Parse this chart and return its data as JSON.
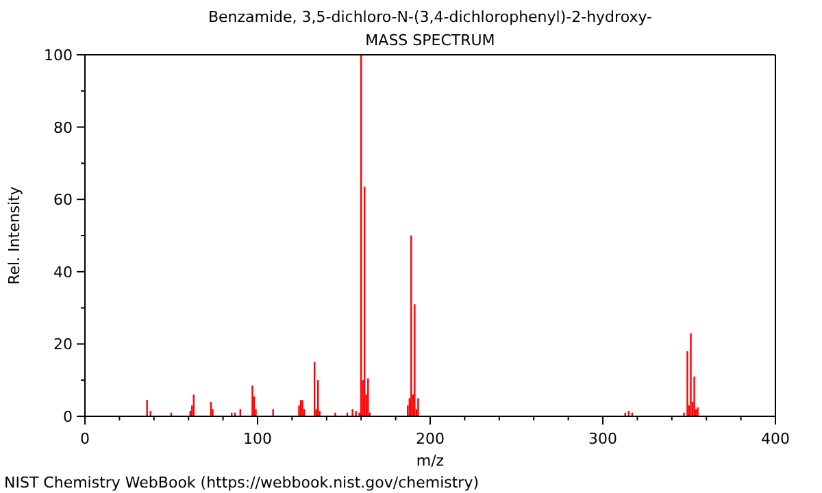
{
  "chart_data": {
    "type": "bar",
    "title": "Benzamide, 3,5-dichloro-N-(3,4-dichlorophenyl)-2-hydroxy-",
    "subtitle": "MASS SPECTRUM",
    "xlabel": "m/z",
    "ylabel": "Rel. Intensity",
    "x": [
      36,
      38,
      50,
      61,
      62,
      63,
      73,
      74,
      85,
      87,
      90,
      97,
      98,
      99,
      109,
      124,
      125,
      126,
      127,
      133,
      134,
      135,
      136,
      145,
      152,
      155,
      157,
      159,
      160,
      161,
      162,
      163,
      164,
      165,
      187,
      188,
      189,
      190,
      191,
      192,
      193,
      313,
      315,
      317,
      347,
      349,
      350,
      351,
      352,
      353,
      354,
      355
    ],
    "values": [
      4.5,
      1.5,
      1,
      1.5,
      3,
      6,
      4,
      2,
      1,
      1,
      2,
      8.5,
      5.5,
      2,
      2,
      3,
      4.5,
      4.5,
      2,
      15,
      2,
      10,
      1.5,
      1,
      1,
      2,
      1.5,
      1,
      100,
      10,
      63.5,
      6,
      10.5,
      1,
      3,
      5,
      50,
      6,
      31,
      2,
      5,
      1,
      1.5,
      1,
      1,
      18,
      3,
      23,
      4,
      11,
      2,
      2.5
    ],
    "color": "#ff0000",
    "xlim": [
      0,
      400
    ],
    "xticks": [
      0,
      {
        "value": 20,
        "label": null
      },
      {
        "value": 40,
        "label": null
      },
      {
        "value": 60,
        "label": null
      },
      {
        "value": 80,
        "label": null
      },
      100,
      {
        "value": 120,
        "label": null
      },
      {
        "value": 140,
        "label": null
      },
      {
        "value": 160,
        "label": null
      },
      {
        "value": 180,
        "label": null
      },
      200,
      {
        "value": 220,
        "label": null
      },
      {
        "value": 240,
        "label": null
      },
      {
        "value": 260,
        "label": null
      },
      {
        "value": 280,
        "label": null
      },
      300,
      {
        "value": 320,
        "label": null
      },
      {
        "value": 340,
        "label": null
      },
      {
        "value": 360,
        "label": null
      },
      {
        "value": 380,
        "label": null
      },
      400
    ],
    "ylim": [
      0,
      100
    ],
    "yticks": [
      0,
      {
        "value": 10,
        "label": null
      },
      20,
      {
        "value": 30,
        "label": null
      },
      40,
      {
        "value": 50,
        "label": null
      },
      60,
      {
        "value": 70,
        "label": null
      },
      80,
      {
        "value": 90,
        "label": null
      },
      100
    ],
    "annotations": [
      "NIST Chemistry WebBook (https://webbook.nist.gov/chemistry)"
    ]
  }
}
